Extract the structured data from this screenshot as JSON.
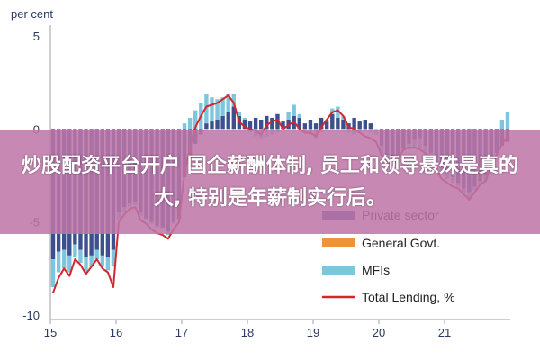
{
  "chart_data": {
    "type": "bar",
    "unit_label": "per cent",
    "ylim": [
      -10,
      5
    ],
    "yticks": [
      "5",
      "0",
      "-5",
      "-10"
    ],
    "xlim": [
      2015.0,
      2022.0
    ],
    "xticks": [
      {
        "value": 2015,
        "label": "15"
      },
      {
        "value": 2016,
        "label": "16"
      },
      {
        "value": 2017,
        "label": "17"
      },
      {
        "value": 2018,
        "label": "18"
      },
      {
        "value": 2019,
        "label": "19"
      },
      {
        "value": 2020,
        "label": "20"
      },
      {
        "value": 2021,
        "label": "21"
      }
    ],
    "grid": false,
    "legend_position": "bottom-right",
    "period_start": 2015.0,
    "period_step": 0.0833333,
    "series": [
      {
        "name": "Private sector",
        "kind": "bar",
        "color": "#3d4f8c",
        "values": [
          -7.0,
          -6.6,
          -6.5,
          -6.8,
          -6.2,
          -6.5,
          -6.9,
          -6.8,
          -6.5,
          -6.8,
          -6.9,
          -6.5,
          -4.5,
          -4.2,
          -4.0,
          -3.9,
          -4.5,
          -4.8,
          -5.0,
          -5.2,
          -5.3,
          -5.5,
          -5.0,
          -4.8,
          -2.6,
          -1.6,
          -0.8,
          -0.3,
          0.3,
          0.4,
          0.5,
          0.7,
          0.9,
          1.2,
          0.7,
          0.5,
          0.4,
          0.6,
          0.5,
          0.7,
          0.6,
          0.8,
          0.4,
          0.5,
          0.7,
          0.6,
          0.3,
          0.5,
          0.3,
          0.6,
          0.4,
          0.8,
          0.6,
          0.5,
          0.3,
          0.6,
          0.4,
          0.5,
          0.3,
          0.0,
          -0.9,
          -1.4,
          -1.8,
          -1.4,
          -1.0,
          -0.8,
          -0.6,
          -0.5,
          -0.9,
          -1.3,
          -1.8,
          -2.1,
          -2.3,
          -2.6,
          -2.9,
          -3.2,
          -3.4,
          -3.1,
          -2.8,
          -2.5,
          -1.7,
          -1.3,
          -0.9,
          -0.7
        ]
      },
      {
        "name": "General Govt.",
        "kind": "bar",
        "color": "#f0923a",
        "values": [
          0.0,
          0.0,
          0.0,
          0.0,
          0.0,
          0.0,
          0.0,
          0.0,
          0.0,
          0.0,
          0.0,
          0.0,
          0.0,
          0.0,
          0.0,
          0.0,
          0.0,
          0.0,
          0.0,
          0.0,
          0.0,
          0.0,
          0.0,
          0.0,
          0.0,
          0.0,
          0.0,
          0.0,
          0.0,
          0.0,
          0.0,
          0.0,
          0.0,
          0.0,
          0.0,
          0.0,
          0.0,
          0.0,
          0.0,
          0.0,
          0.0,
          0.0,
          0.0,
          0.0,
          0.0,
          0.0,
          0.0,
          0.0,
          0.0,
          0.0,
          0.0,
          0.0,
          0.0,
          0.0,
          0.0,
          0.0,
          0.0,
          0.0,
          0.0,
          0.0,
          0.0,
          0.0,
          0.0,
          0.0,
          0.0,
          0.0,
          0.0,
          0.0,
          0.0,
          0.0,
          0.0,
          0.0,
          0.0,
          0.0,
          0.0,
          0.0,
          0.0,
          0.0,
          0.0,
          0.0,
          0.0,
          0.0,
          0.0,
          0.0
        ]
      },
      {
        "name": "MFIs",
        "kind": "bar",
        "color": "#7ec6dd",
        "values": [
          -1.5,
          -1.1,
          -1.0,
          -0.9,
          -0.7,
          -0.7,
          -0.8,
          -0.6,
          -0.5,
          -0.6,
          -0.7,
          -0.9,
          -0.4,
          -0.3,
          -0.2,
          -0.2,
          -0.2,
          -0.1,
          -0.1,
          -0.1,
          -0.1,
          -0.2,
          -0.1,
          -0.1,
          0.3,
          0.6,
          1.0,
          1.4,
          1.6,
          1.3,
          1.1,
          1.0,
          1.0,
          0.7,
          0.2,
          0.1,
          -0.2,
          -0.4,
          -0.5,
          -0.4,
          -0.3,
          -0.2,
          0.0,
          0.4,
          0.6,
          0.2,
          -0.1,
          -0.3,
          -0.5,
          -0.2,
          0.1,
          0.3,
          0.6,
          0.2,
          -0.2,
          -0.3,
          -0.2,
          -0.1,
          -0.2,
          -0.3,
          -0.5,
          -0.3,
          -0.2,
          -0.3,
          -0.2,
          -0.3,
          -0.4,
          -0.5,
          -0.5,
          -0.4,
          -0.4,
          -0.3,
          -0.4,
          -0.3,
          -0.2,
          -0.3,
          -0.3,
          -0.2,
          -0.2,
          -0.3,
          -0.2,
          -0.1,
          0.5,
          0.9
        ]
      },
      {
        "name": "Total Lending, %",
        "kind": "line",
        "color": "#d6262b",
        "values": [
          -8.8,
          -8.0,
          -7.5,
          -7.9,
          -7.0,
          -7.3,
          -7.8,
          -7.4,
          -7.0,
          -7.5,
          -7.7,
          -8.5,
          -5.0,
          -4.6,
          -4.3,
          -4.2,
          -4.9,
          -5.1,
          -5.4,
          -5.6,
          -5.7,
          -5.9,
          -5.4,
          -5.0,
          -2.4,
          -1.0,
          0.1,
          0.7,
          1.2,
          1.3,
          1.4,
          1.6,
          1.8,
          1.4,
          0.4,
          0.1,
          0.0,
          -0.1,
          -0.3,
          0.2,
          0.4,
          0.5,
          0.0,
          0.2,
          0.4,
          0.0,
          -0.2,
          -0.2,
          -0.4,
          0.1,
          0.5,
          0.9,
          1.0,
          0.7,
          0.1,
          0.0,
          -0.2,
          -0.4,
          -0.5,
          -0.7,
          -1.4,
          -1.7,
          -2.0,
          -1.6,
          -1.1,
          -1.0,
          -1.0,
          -1.1,
          -1.3,
          -1.6,
          -2.2,
          -2.7,
          -2.9,
          -3.1,
          -3.2,
          -3.5,
          -3.8,
          -3.4,
          -3.0,
          -2.8,
          -2.0,
          -1.4,
          -0.8,
          -0.4
        ]
      }
    ]
  },
  "banner": {
    "text": "炒股配资平台开户 国企薪酬体制, 员工和领导悬殊是真的大, 特别是年薪制实行后。"
  }
}
